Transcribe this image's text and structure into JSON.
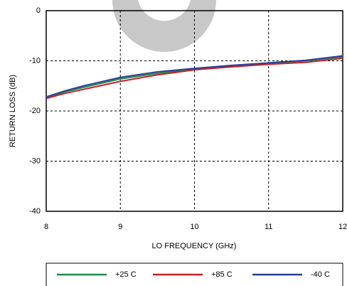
{
  "chart_data": {
    "type": "line",
    "x_label": "LO FREQUENCY (GHz)",
    "y_label": "RETURN LOSS (dB)",
    "x": [
      8,
      8.25,
      8.5,
      9,
      9.5,
      10,
      10.5,
      11,
      11.5,
      12
    ],
    "series": [
      {
        "name": "+25 C",
        "color": "#1e8a4a",
        "values": [
          -17.3,
          -16.2,
          -15.3,
          -13.6,
          -12.5,
          -11.6,
          -11.0,
          -10.5,
          -10.0,
          -9.2
        ]
      },
      {
        "name": "+85 C",
        "color": "#c8202a",
        "values": [
          -17.5,
          -16.5,
          -15.7,
          -14.1,
          -12.8,
          -11.8,
          -11.2,
          -10.7,
          -10.3,
          -9.5
        ]
      },
      {
        "name": "-40 C",
        "color": "#2a3f9a",
        "values": [
          -17.2,
          -16.0,
          -15.0,
          -13.3,
          -12.2,
          -11.5,
          -10.9,
          -10.4,
          -9.9,
          -9.0
        ]
      }
    ],
    "xlim": [
      8,
      12
    ],
    "xticks": [
      8,
      9,
      10,
      11,
      12
    ],
    "ylim": [
      -40,
      0
    ],
    "yticks": [
      -40,
      -30,
      -20,
      -10,
      0
    ],
    "grid": true
  }
}
